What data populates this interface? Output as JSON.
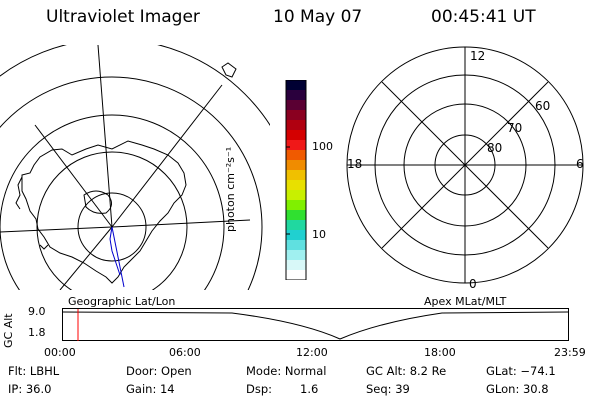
{
  "header": {
    "instrument": "Ultraviolet Imager",
    "date": "10 May 07",
    "time": "00:45:41 UT"
  },
  "colorbar": {
    "unit_label": "photon cm⁻²s⁻¹",
    "tick_labels": [
      "100",
      "10"
    ],
    "colors_top_to_bottom": [
      "#000033",
      "#2a003d",
      "#5a0033",
      "#8a0020",
      "#b00010",
      "#d40000",
      "#f01818",
      "#f05a00",
      "#f08c00",
      "#f0c000",
      "#e8e000",
      "#c8f000",
      "#80f000",
      "#30e030",
      "#20d8a0",
      "#20d0d0",
      "#60e0e0",
      "#a0f0f0",
      "#d8f8f8",
      "#ffffff"
    ]
  },
  "polar_plot": {
    "lat_labels": [
      "60",
      "70",
      "80"
    ],
    "mlt_labels": [
      "12",
      "18",
      "6",
      "0"
    ]
  },
  "labels": {
    "geographic": "Geographic Lat/Lon",
    "apex": "Apex MLat/MLT"
  },
  "timeline": {
    "axis_label": "GC Alt",
    "y_ticks": [
      "9.0",
      "1.8"
    ],
    "x_ticks": [
      "00:00",
      "06:00",
      "12:00",
      "18:00",
      "23:59"
    ],
    "current_time_marker_hour": 0.76,
    "accent_color": "#ff0000"
  },
  "info": {
    "flt": "Flt: LBHL",
    "door": "Door: Open",
    "mode": "Mode: Normal",
    "gc_alt": "GC Alt: 8.2 Re",
    "glat": "GLat: −74.1",
    "ip": "IP: 36.0",
    "gain": "Gain: 14",
    "dsp_label": "Dsp:",
    "dsp_value": "1.6",
    "seq": "Seq: 39",
    "glon": "GLon:  30.8"
  }
}
